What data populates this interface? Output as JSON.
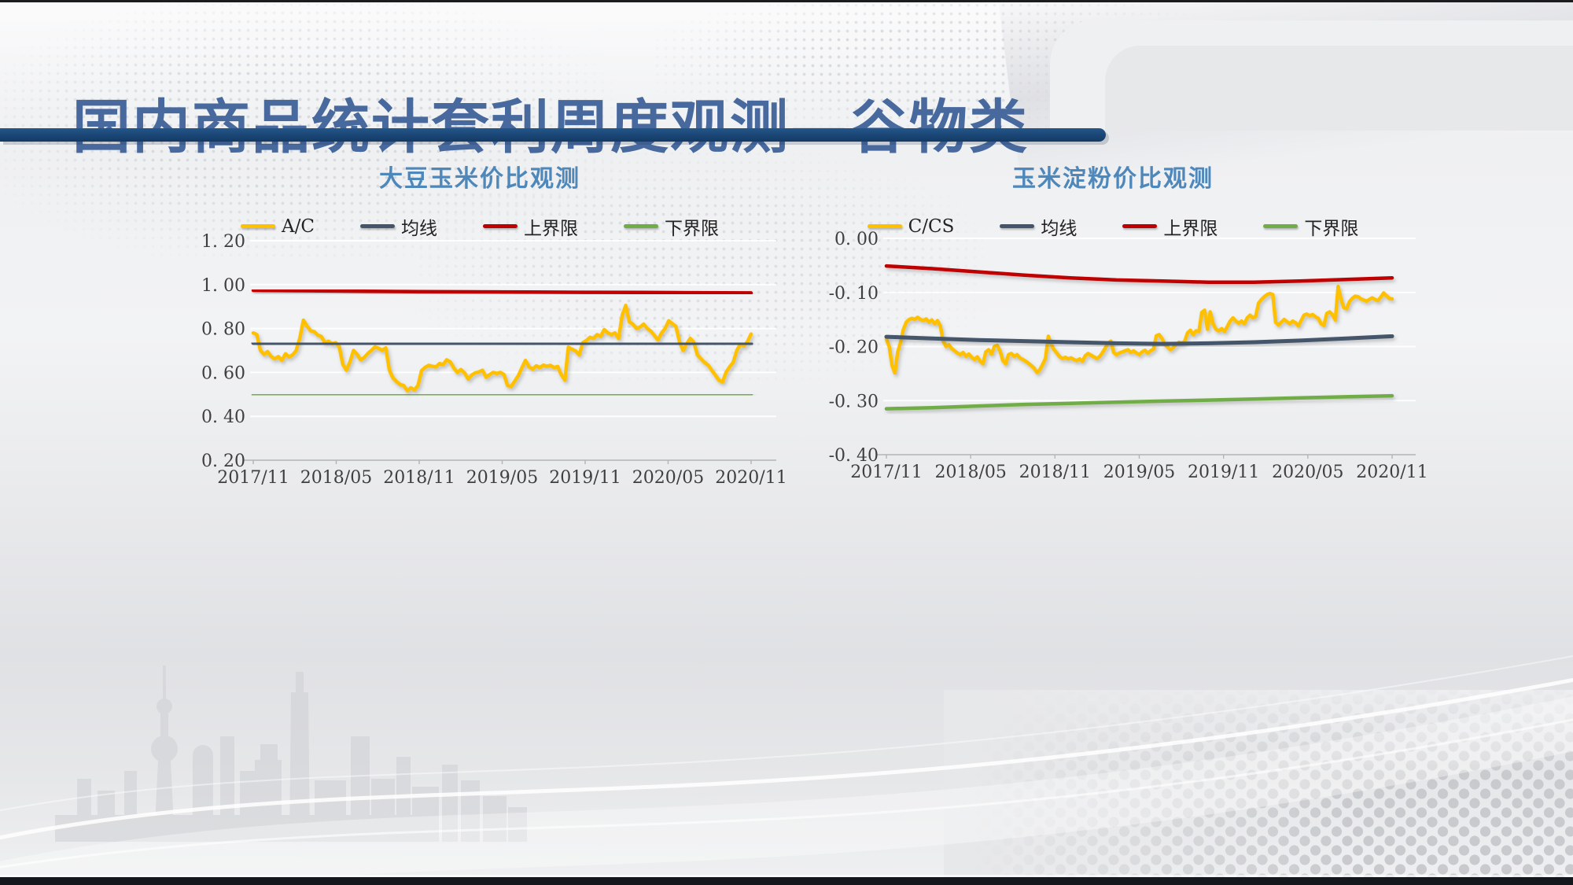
{
  "slide": {
    "title": "国内商品统计套利周度观测—谷物类"
  },
  "colors": {
    "title": "#48699E",
    "chart_title": "#4E87BA",
    "navy_bar": "#1B4878",
    "series_yellow": "#FFC000",
    "series_slate": "#44546A",
    "series_red": "#C00000",
    "series_green": "#70AD47"
  },
  "chart_data": [
    {
      "type": "line",
      "title": "大豆玉米价比观测",
      "legend_position": "top",
      "grid": true,
      "x_categories": [
        "2017/11",
        "2018/05",
        "2018/11",
        "2019/05",
        "2019/11",
        "2020/05",
        "2020/11"
      ],
      "ylim": [
        0.2,
        1.2
      ],
      "ytick_values": [
        1.2,
        1.0,
        0.8,
        0.6,
        0.4,
        0.2
      ],
      "ytick_labels": [
        "1. 20",
        "1. 00",
        "0. 80",
        "0. 60",
        "0. 40",
        "0. 20"
      ],
      "series": [
        {
          "name": "A/C",
          "color": "#FFC000",
          "width": 4.5,
          "values": [
            0.78,
            0.772,
            0.7,
            0.682,
            0.695,
            0.672,
            0.662,
            0.672,
            0.655,
            0.685,
            0.67,
            0.68,
            0.7,
            0.756,
            0.838,
            0.812,
            0.79,
            0.786,
            0.77,
            0.764,
            0.736,
            0.742,
            0.731,
            0.735,
            0.718,
            0.638,
            0.61,
            0.648,
            0.7,
            0.682,
            0.657,
            0.668,
            0.686,
            0.7,
            0.716,
            0.71,
            0.7,
            0.712,
            0.61,
            0.575,
            0.558,
            0.545,
            0.54,
            0.517,
            0.53,
            0.52,
            0.54,
            0.608,
            0.623,
            0.632,
            0.628,
            0.625,
            0.64,
            0.636,
            0.657,
            0.648,
            0.62,
            0.6,
            0.613,
            0.598,
            0.57,
            0.588,
            0.598,
            0.602,
            0.61,
            0.578,
            0.59,
            0.6,
            0.595,
            0.6,
            0.59,
            0.54,
            0.536,
            0.56,
            0.585,
            0.62,
            0.655,
            0.625,
            0.615,
            0.63,
            0.622,
            0.633,
            0.628,
            0.632,
            0.622,
            0.627,
            0.59,
            0.565,
            0.715,
            0.705,
            0.698,
            0.68,
            0.735,
            0.745,
            0.76,
            0.755,
            0.772,
            0.765,
            0.795,
            0.78,
            0.772,
            0.78,
            0.755,
            0.86,
            0.905,
            0.83,
            0.82,
            0.8,
            0.806,
            0.82,
            0.8,
            0.788,
            0.768,
            0.748,
            0.78,
            0.8,
            0.835,
            0.822,
            0.81,
            0.74,
            0.7,
            0.73,
            0.755,
            0.738,
            0.68,
            0.662,
            0.645,
            0.633,
            0.61,
            0.588,
            0.565,
            0.556,
            0.6,
            0.625,
            0.645,
            0.7,
            0.728,
            0.72,
            0.74,
            0.775
          ]
        },
        {
          "name": "均线",
          "color": "#44546A",
          "width": 5,
          "values": [
            0.734,
            0.732,
            0.731,
            0.73,
            0.729,
            0.728,
            0.728,
            0.729,
            0.73,
            0.731
          ]
        },
        {
          "name": "上界限",
          "color": "#C00000",
          "width": 4.5,
          "values": [
            0.974,
            0.972,
            0.97,
            0.968,
            0.967,
            0.966,
            0.965,
            0.964,
            0.963,
            0.962
          ]
        },
        {
          "name": "下界限",
          "color": "#70AD47",
          "width": 4.5,
          "values": [
            0.497,
            0.497,
            0.498,
            0.498,
            0.499,
            0.499,
            0.5,
            0.5,
            0.5,
            0.5
          ]
        }
      ]
    },
    {
      "type": "line",
      "title": "玉米淀粉价比观测",
      "legend_position": "top",
      "grid": true,
      "x_categories": [
        "2017/11",
        "2018/05",
        "2018/11",
        "2019/05",
        "2019/11",
        "2020/05",
        "2020/11"
      ],
      "ylim": [
        -0.4,
        0.0
      ],
      "ytick_values": [
        0.0,
        -0.1,
        -0.2,
        -0.3,
        -0.4
      ],
      "ytick_labels": [
        "0. 00",
        "-0. 10",
        "-0. 20",
        "-0. 30",
        "-0. 40"
      ],
      "series": [
        {
          "name": "C/CS",
          "color": "#FFC000",
          "width": 4.5,
          "values": [
            -0.186,
            -0.2,
            -0.235,
            -0.249,
            -0.21,
            -0.192,
            -0.168,
            -0.155,
            -0.15,
            -0.148,
            -0.15,
            -0.146,
            -0.15,
            -0.152,
            -0.149,
            -0.155,
            -0.151,
            -0.158,
            -0.152,
            -0.162,
            -0.19,
            -0.2,
            -0.197,
            -0.204,
            -0.208,
            -0.212,
            -0.215,
            -0.211,
            -0.218,
            -0.214,
            -0.22,
            -0.224,
            -0.219,
            -0.227,
            -0.232,
            -0.21,
            -0.206,
            -0.214,
            -0.2,
            -0.198,
            -0.208,
            -0.226,
            -0.232,
            -0.215,
            -0.213,
            -0.218,
            -0.215,
            -0.221,
            -0.224,
            -0.227,
            -0.231,
            -0.235,
            -0.24,
            -0.248,
            -0.243,
            -0.233,
            -0.222,
            -0.181,
            -0.196,
            -0.206,
            -0.212,
            -0.219,
            -0.222,
            -0.22,
            -0.223,
            -0.221,
            -0.224,
            -0.226,
            -0.223,
            -0.227,
            -0.217,
            -0.213,
            -0.216,
            -0.219,
            -0.222,
            -0.219,
            -0.212,
            -0.203,
            -0.194,
            -0.19,
            -0.211,
            -0.215,
            -0.212,
            -0.21,
            -0.208,
            -0.206,
            -0.211,
            -0.208,
            -0.212,
            -0.215,
            -0.21,
            -0.207,
            -0.212,
            -0.208,
            -0.205,
            -0.18,
            -0.178,
            -0.185,
            -0.196,
            -0.201,
            -0.206,
            -0.202,
            -0.196,
            -0.192,
            -0.194,
            -0.19,
            -0.175,
            -0.17,
            -0.178,
            -0.171,
            -0.172,
            -0.137,
            -0.133,
            -0.168,
            -0.136,
            -0.158,
            -0.168,
            -0.171,
            -0.167,
            -0.172,
            -0.163,
            -0.153,
            -0.147,
            -0.153,
            -0.157,
            -0.153,
            -0.158,
            -0.147,
            -0.142,
            -0.147,
            -0.144,
            -0.12,
            -0.113,
            -0.108,
            -0.104,
            -0.102,
            -0.104,
            -0.155,
            -0.16,
            -0.155,
            -0.15,
            -0.154,
            -0.158,
            -0.153,
            -0.156,
            -0.162,
            -0.152,
            -0.142,
            -0.14,
            -0.143,
            -0.141,
            -0.145,
            -0.148,
            -0.158,
            -0.161,
            -0.139,
            -0.136,
            -0.141,
            -0.151,
            -0.089,
            -0.112,
            -0.128,
            -0.13,
            -0.117,
            -0.111,
            -0.107,
            -0.108,
            -0.112,
            -0.114,
            -0.116,
            -0.113,
            -0.11,
            -0.113,
            -0.115,
            -0.109,
            -0.101,
            -0.106,
            -0.111,
            -0.112
          ]
        },
        {
          "name": "均线",
          "color": "#44546A",
          "width": 5,
          "values": [
            -0.182,
            -0.185,
            -0.188,
            -0.19,
            -0.192,
            -0.194,
            -0.195,
            -0.194,
            -0.192,
            -0.189,
            -0.185,
            -0.181
          ]
        },
        {
          "name": "上界限",
          "color": "#C00000",
          "width": 4.5,
          "values": [
            -0.051,
            -0.056,
            -0.062,
            -0.068,
            -0.073,
            -0.077,
            -0.079,
            -0.081,
            -0.081,
            -0.079,
            -0.076,
            -0.073
          ]
        },
        {
          "name": "下界限",
          "color": "#70AD47",
          "width": 4.5,
          "values": [
            -0.315,
            -0.313,
            -0.31,
            -0.307,
            -0.305,
            -0.303,
            -0.301,
            -0.299,
            -0.297,
            -0.295,
            -0.293,
            -0.291
          ]
        }
      ]
    }
  ]
}
